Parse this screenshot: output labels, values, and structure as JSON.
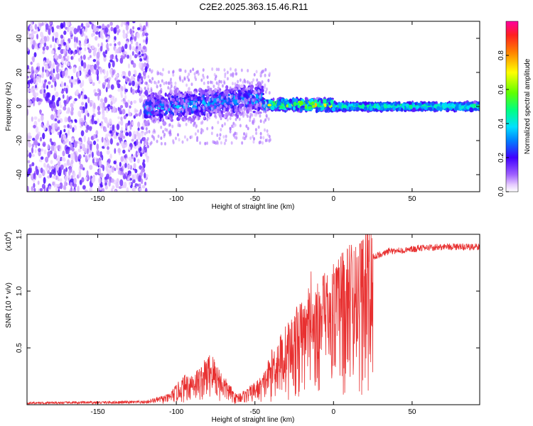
{
  "title": "C2E2.2025.363.15.46.R11",
  "chart_data": [
    {
      "type": "heatmap",
      "xlabel": "Height of straight line (km)",
      "ylabel": "Frequency (Hz)",
      "xlim": [
        -195,
        93
      ],
      "ylim": [
        -50,
        50
      ],
      "xticks": [
        -150,
        -100,
        -50,
        0,
        50
      ],
      "yticks": [
        -40,
        -20,
        0,
        20,
        40
      ],
      "colorbar": {
        "label": "Normalized spectral amplitude",
        "range": [
          0,
          1
        ],
        "ticks": [
          "0.0",
          "0.2",
          "0.4",
          "0.6",
          "0.8"
        ],
        "tick_values": [
          0,
          0.2,
          0.4,
          0.6,
          0.8
        ]
      },
      "regions": [
        {
          "x_from": -195,
          "x_to": -118,
          "freq_spread": 50,
          "amplitude": 0.1,
          "description_note": "scattered noise"
        },
        {
          "x_from": -118,
          "x_to": -45,
          "freq_center": 2,
          "freq_halfwidth": 10,
          "amplitude": 0.3
        },
        {
          "x_from": -45,
          "x_to": 0,
          "freq_center": 1,
          "freq_halfwidth": 4,
          "amplitude": 0.6
        },
        {
          "x_from": 0,
          "x_to": 93,
          "freq_center": 0,
          "freq_halfwidth": 3,
          "amplitude": 0.45
        }
      ]
    },
    {
      "type": "line",
      "xlabel": "Height of straight line (km)",
      "ylabel": "SNR (10 * v/v)",
      "multiplier_label": "(x10",
      "multiplier_exp": "4",
      "xlim": [
        -195,
        93
      ],
      "ylim": [
        0,
        1.5
      ],
      "xticks": [
        -150,
        -100,
        -50,
        0,
        50
      ],
      "yticks": [
        0.5,
        1.0,
        1.5
      ],
      "ytick_labels": [
        "0.5",
        "1.0",
        "1.5"
      ],
      "color": "#e83030",
      "envelope": [
        {
          "x": -195,
          "y": 0.02
        },
        {
          "x": -120,
          "y": 0.03
        },
        {
          "x": -105,
          "y": 0.08
        },
        {
          "x": -95,
          "y": 0.22
        },
        {
          "x": -85,
          "y": 0.28
        },
        {
          "x": -78,
          "y": 0.4
        },
        {
          "x": -70,
          "y": 0.22
        },
        {
          "x": -62,
          "y": 0.08
        },
        {
          "x": -55,
          "y": 0.12
        },
        {
          "x": -45,
          "y": 0.22
        },
        {
          "x": -38,
          "y": 0.45
        },
        {
          "x": -30,
          "y": 0.6
        },
        {
          "x": -22,
          "y": 0.75
        },
        {
          "x": -15,
          "y": 0.85
        },
        {
          "x": -8,
          "y": 0.95
        },
        {
          "x": 0,
          "y": 1.05
        },
        {
          "x": 8,
          "y": 1.15
        },
        {
          "x": 15,
          "y": 1.25
        },
        {
          "x": 25,
          "y": 1.33
        },
        {
          "x": 35,
          "y": 1.38
        },
        {
          "x": 50,
          "y": 1.4
        },
        {
          "x": 70,
          "y": 1.42
        },
        {
          "x": 93,
          "y": 1.42
        }
      ]
    }
  ]
}
